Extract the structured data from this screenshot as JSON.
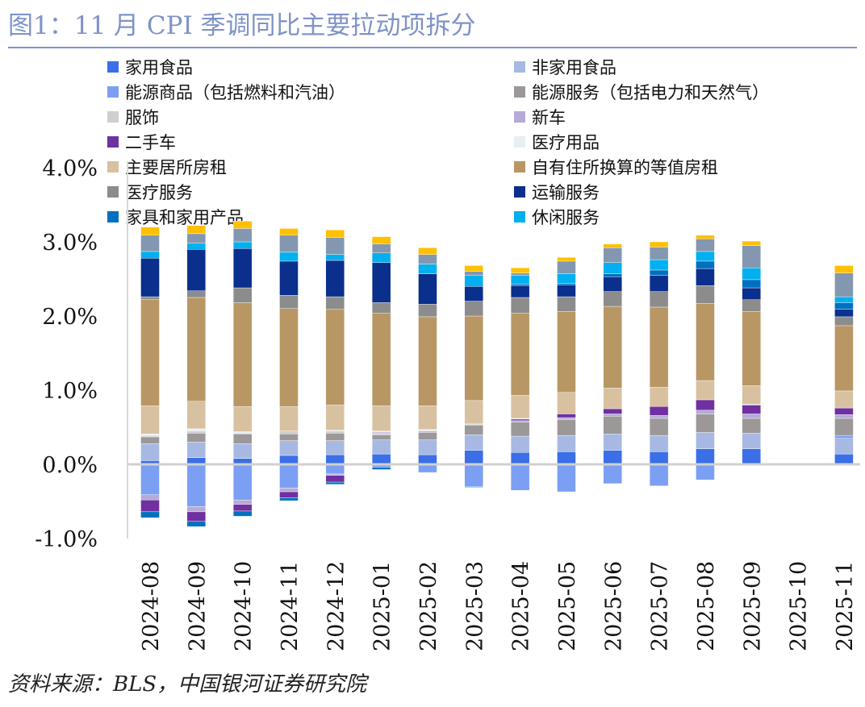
{
  "title": "图1：11 月 CPI 季调同比主要拉动项拆分",
  "source": "资料来源：BLS，中国银河证券研究院",
  "chart_data": {
    "type": "bar",
    "stacked": true,
    "title": "图1：11 月 CPI 季调同比主要拉动项拆分",
    "xlabel": "",
    "ylabel": "",
    "ylim": [
      -1.0,
      4.0
    ],
    "yticks": [
      "-1.0%",
      "0.0%",
      "1.0%",
      "2.0%",
      "3.0%",
      "4.0%"
    ],
    "ytick_values": [
      -1,
      0,
      1,
      2,
      3,
      4
    ],
    "grid": false,
    "legend_position": "top",
    "categories": [
      "2024-08",
      "2024-09",
      "2024-10",
      "2024-11",
      "2024-12",
      "2025-01",
      "2025-02",
      "2025-03",
      "2025-04",
      "2025-05",
      "2025-06",
      "2025-07",
      "2025-08",
      "2025-09",
      "2025-10",
      "2025-11"
    ],
    "series": [
      {
        "name": "家用食品",
        "color": "#3A6FE8",
        "values": [
          0.05,
          0.09,
          0.08,
          0.12,
          0.13,
          0.14,
          0.13,
          0.19,
          0.16,
          0.17,
          0.19,
          0.17,
          0.21,
          0.21,
          null,
          0.14
        ]
      },
      {
        "name": "非家用食品",
        "color": "#A7B9E2",
        "values": [
          0.23,
          0.21,
          0.2,
          0.2,
          0.19,
          0.19,
          0.2,
          0.21,
          0.22,
          0.22,
          0.22,
          0.22,
          0.22,
          0.21,
          null,
          0.21
        ]
      },
      {
        "name": "能源商品（包括燃料和汽油）",
        "color": "#7B9FF2",
        "values": [
          -0.41,
          -0.57,
          -0.48,
          -0.32,
          -0.13,
          -0.04,
          -0.1,
          -0.3,
          -0.35,
          -0.37,
          -0.26,
          -0.29,
          -0.21,
          0,
          null,
          0.04
        ]
      },
      {
        "name": "能源服务（包括电力和天然气）",
        "color": "#9C9898",
        "values": [
          0.09,
          0.12,
          0.13,
          0.09,
          0.1,
          0.07,
          0.1,
          0.13,
          0.19,
          0.21,
          0.24,
          0.23,
          0.25,
          0.2,
          null,
          0.23
        ]
      },
      {
        "name": "服饰",
        "color": "#CFCFCF",
        "values": [
          0.02,
          0.03,
          0.01,
          0.04,
          0.03,
          0.01,
          0,
          0.01,
          0,
          0,
          0,
          0,
          0,
          0,
          null,
          0
        ]
      },
      {
        "name": "新车",
        "color": "#B6AAD8",
        "values": [
          -0.07,
          -0.07,
          -0.06,
          -0.05,
          -0.02,
          0.01,
          0.01,
          0.01,
          0.02,
          0.03,
          0.03,
          0.04,
          0.05,
          0.06,
          null,
          0.05
        ]
      },
      {
        "name": "二手车",
        "color": "#7030A0",
        "values": [
          -0.16,
          -0.13,
          -0.09,
          -0.08,
          -0.09,
          0.01,
          0.01,
          0,
          0.02,
          0.05,
          0.07,
          0.12,
          0.14,
          0.12,
          null,
          0.09
        ]
      },
      {
        "name": "医疗用品",
        "color": "#E9EEF5",
        "values": [
          0.02,
          0.03,
          0.02,
          0,
          0.01,
          0.02,
          0.02,
          0,
          0.01,
          0,
          0,
          0,
          0,
          0.01,
          null,
          0
        ]
      },
      {
        "name": "主要居所房租",
        "color": "#D8C1A0",
        "values": [
          0.38,
          0.37,
          0.34,
          0.33,
          0.34,
          0.34,
          0.32,
          0.31,
          0.31,
          0.29,
          0.28,
          0.26,
          0.26,
          0.25,
          null,
          0.23
        ]
      },
      {
        "name": "自有住所换算的等值房租",
        "color": "#B89764",
        "values": [
          1.43,
          1.4,
          1.4,
          1.32,
          1.29,
          1.25,
          1.2,
          1.14,
          1.11,
          1.09,
          1.1,
          1.08,
          1.04,
          1.0,
          null,
          0.88
        ]
      },
      {
        "name": "医疗服务",
        "color": "#8C8C8C",
        "values": [
          0.04,
          0.09,
          0.2,
          0.18,
          0.17,
          0.14,
          0.17,
          0.2,
          0.21,
          0.2,
          0.2,
          0.21,
          0.24,
          0.16,
          null,
          0.12
        ]
      },
      {
        "name": "运输服务",
        "color": "#0A2F8C",
        "values": [
          0.52,
          0.56,
          0.53,
          0.46,
          0.49,
          0.54,
          0.41,
          0.2,
          0.16,
          0.16,
          0.2,
          0.22,
          0.23,
          0.16,
          null,
          0.1
        ]
      },
      {
        "name": "家具和家用产品",
        "color": "#0070C0",
        "values": [
          -0.08,
          -0.07,
          -0.07,
          -0.04,
          -0.03,
          -0.03,
          -0.01,
          -0.01,
          0.02,
          0.02,
          0.04,
          0.07,
          0.1,
          0.11,
          null,
          0.09
        ]
      },
      {
        "name": "休闲服务",
        "color": "#00B0F0",
        "values": [
          0.09,
          0.08,
          0.09,
          0.12,
          0.08,
          0.13,
          0.13,
          0.15,
          0.12,
          0.13,
          0.15,
          0.14,
          0.13,
          0.16,
          null,
          0.08
        ]
      },
      {
        "name": "",
        "color": "#8497B0",
        "values": [
          0.22,
          0.13,
          0.18,
          0.23,
          0.23,
          0.12,
          0.13,
          0.05,
          0.03,
          0.17,
          0.2,
          0.17,
          0.17,
          0.3,
          null,
          0.32
        ]
      },
      {
        "name": "",
        "color": "#FFC000",
        "values": [
          0.11,
          0.11,
          0.1,
          0.09,
          0.1,
          0.1,
          0.09,
          0.08,
          0.07,
          0.05,
          0.05,
          0.07,
          0.05,
          0.06,
          null,
          0.1
        ]
      }
    ]
  }
}
